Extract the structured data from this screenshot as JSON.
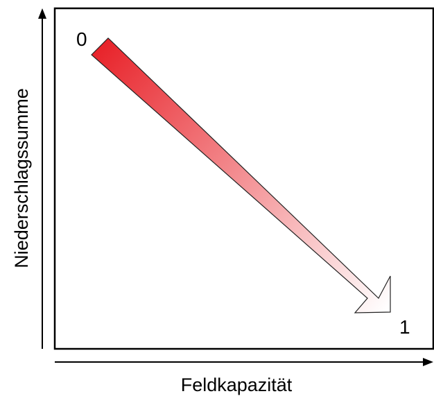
{
  "diagram": {
    "x_axis_label": "Feldkapazität",
    "y_axis_label": "Niederschlagssumme",
    "start_label": "0",
    "end_label": "1",
    "colors": {
      "arrow_start": "#e8242b",
      "arrow_end": "#ffffff",
      "outline": "#000000",
      "background": "#ffffff"
    }
  }
}
